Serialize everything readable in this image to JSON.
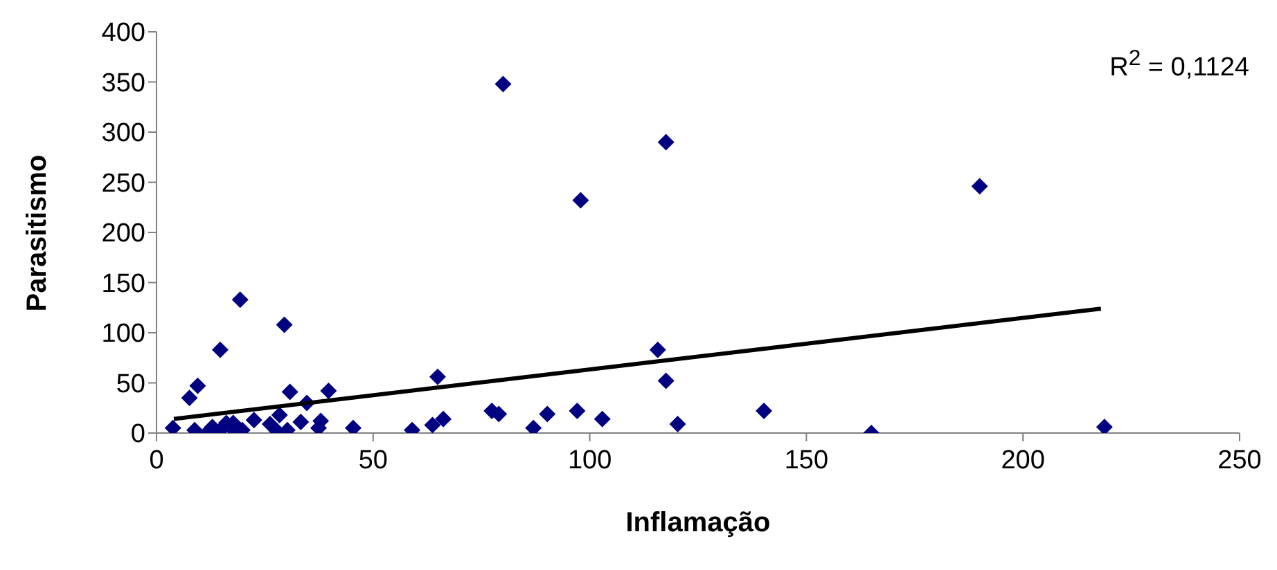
{
  "chart_data": {
    "type": "scatter",
    "xlabel": "Inflamação",
    "ylabel": "Parasitismo",
    "annotations": [
      "R$^{2}$ = 0,1124"
    ],
    "xlim": [
      0,
      250
    ],
    "xticks": [
      0,
      50,
      100,
      150,
      200,
      250
    ],
    "ylim": [
      0,
      400
    ],
    "yticks": [
      0,
      50,
      100,
      150,
      200,
      250,
      300,
      350,
      400
    ],
    "grid": false,
    "marker": "diamond",
    "series": [
      {
        "color": "#000080",
        "x": [
          3.8,
          7.6,
          9.5,
          14.7,
          19.3,
          29.5,
          8.8,
          11.6,
          12.9,
          14.8,
          16.1,
          17.7,
          18,
          19.8,
          22.5,
          26.2,
          27.8,
          28.4,
          30.2,
          30.8,
          33.3,
          34.7,
          37.4,
          37.9,
          39.7,
          45.4,
          59,
          63.7,
          64.9,
          66.2,
          80,
          117.6,
          97.9,
          115.7,
          117.6,
          77.4,
          79,
          87,
          90.2,
          97.1,
          102.9,
          120.3,
          140.2,
          165,
          190,
          218.8
        ],
        "values": [
          5,
          35,
          47,
          83,
          133,
          108,
          3,
          0,
          6,
          3,
          10,
          10,
          2,
          3,
          13,
          9,
          2,
          18,
          3,
          41,
          11,
          30,
          5,
          12,
          42,
          5,
          3,
          8,
          56,
          14,
          348,
          290,
          232,
          83,
          52,
          22,
          19,
          5,
          19,
          22,
          14,
          9,
          22,
          0,
          246,
          6
        ]
      },
      {
        "type": "line",
        "marker": "none",
        "color": "#000000",
        "x": [
          4,
          218
        ],
        "values": [
          14,
          124
        ]
      }
    ]
  }
}
